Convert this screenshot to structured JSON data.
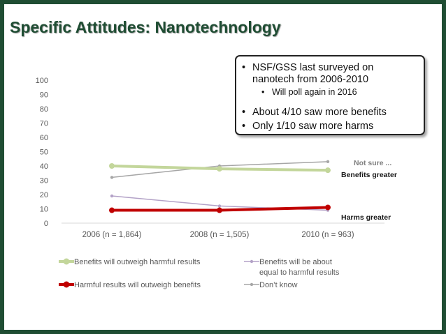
{
  "slide": {
    "title": "Specific Attitudes: Nanotechnology"
  },
  "callout": {
    "bullet1_line1": "NSF/GSS last surveyed on",
    "bullet1_line2": "nanotech from 2006-2010",
    "sub_bullet": "Will poll again in 2016",
    "bullet2": "About 4/10 saw more benefits",
    "bullet3": "Only 1/10 saw more harms",
    "bullet_symbol": "•"
  },
  "chart_data": {
    "type": "line",
    "categories": [
      "2006 (n = 1,864)",
      "2008 (n = 1,505)",
      "2010 (n = 963)"
    ],
    "ylim": [
      0,
      100
    ],
    "yticks": [
      0,
      10,
      20,
      30,
      40,
      50,
      60,
      70,
      80,
      90,
      100
    ],
    "series": [
      {
        "name": "Benefits will outweigh harmful results",
        "values": [
          40,
          38,
          37
        ],
        "color": "#c3d69b",
        "end_label": "Benefits greater"
      },
      {
        "name": "Benefits will be about equal to harmful results",
        "values": [
          19,
          12,
          9
        ],
        "color": "#b3a2c7",
        "end_label": ""
      },
      {
        "name": "Harmful results will outweigh benefits",
        "values": [
          9,
          9,
          11
        ],
        "color": "#c00000",
        "end_label": "Harms greater"
      },
      {
        "name": "Don't know",
        "values": [
          32,
          40,
          43
        ],
        "color": "#a6a6a6",
        "end_label": "Not sure ..."
      }
    ],
    "legend": {
      "items": [
        {
          "line1": "Benefits will outweigh harmful results",
          "line2": ""
        },
        {
          "line1": "Benefits will be about",
          "line2": "equal to harmful results"
        },
        {
          "line1": "Harmful results will outweigh benefits",
          "line2": ""
        },
        {
          "line1": "Don’t know",
          "line2": ""
        }
      ]
    }
  }
}
